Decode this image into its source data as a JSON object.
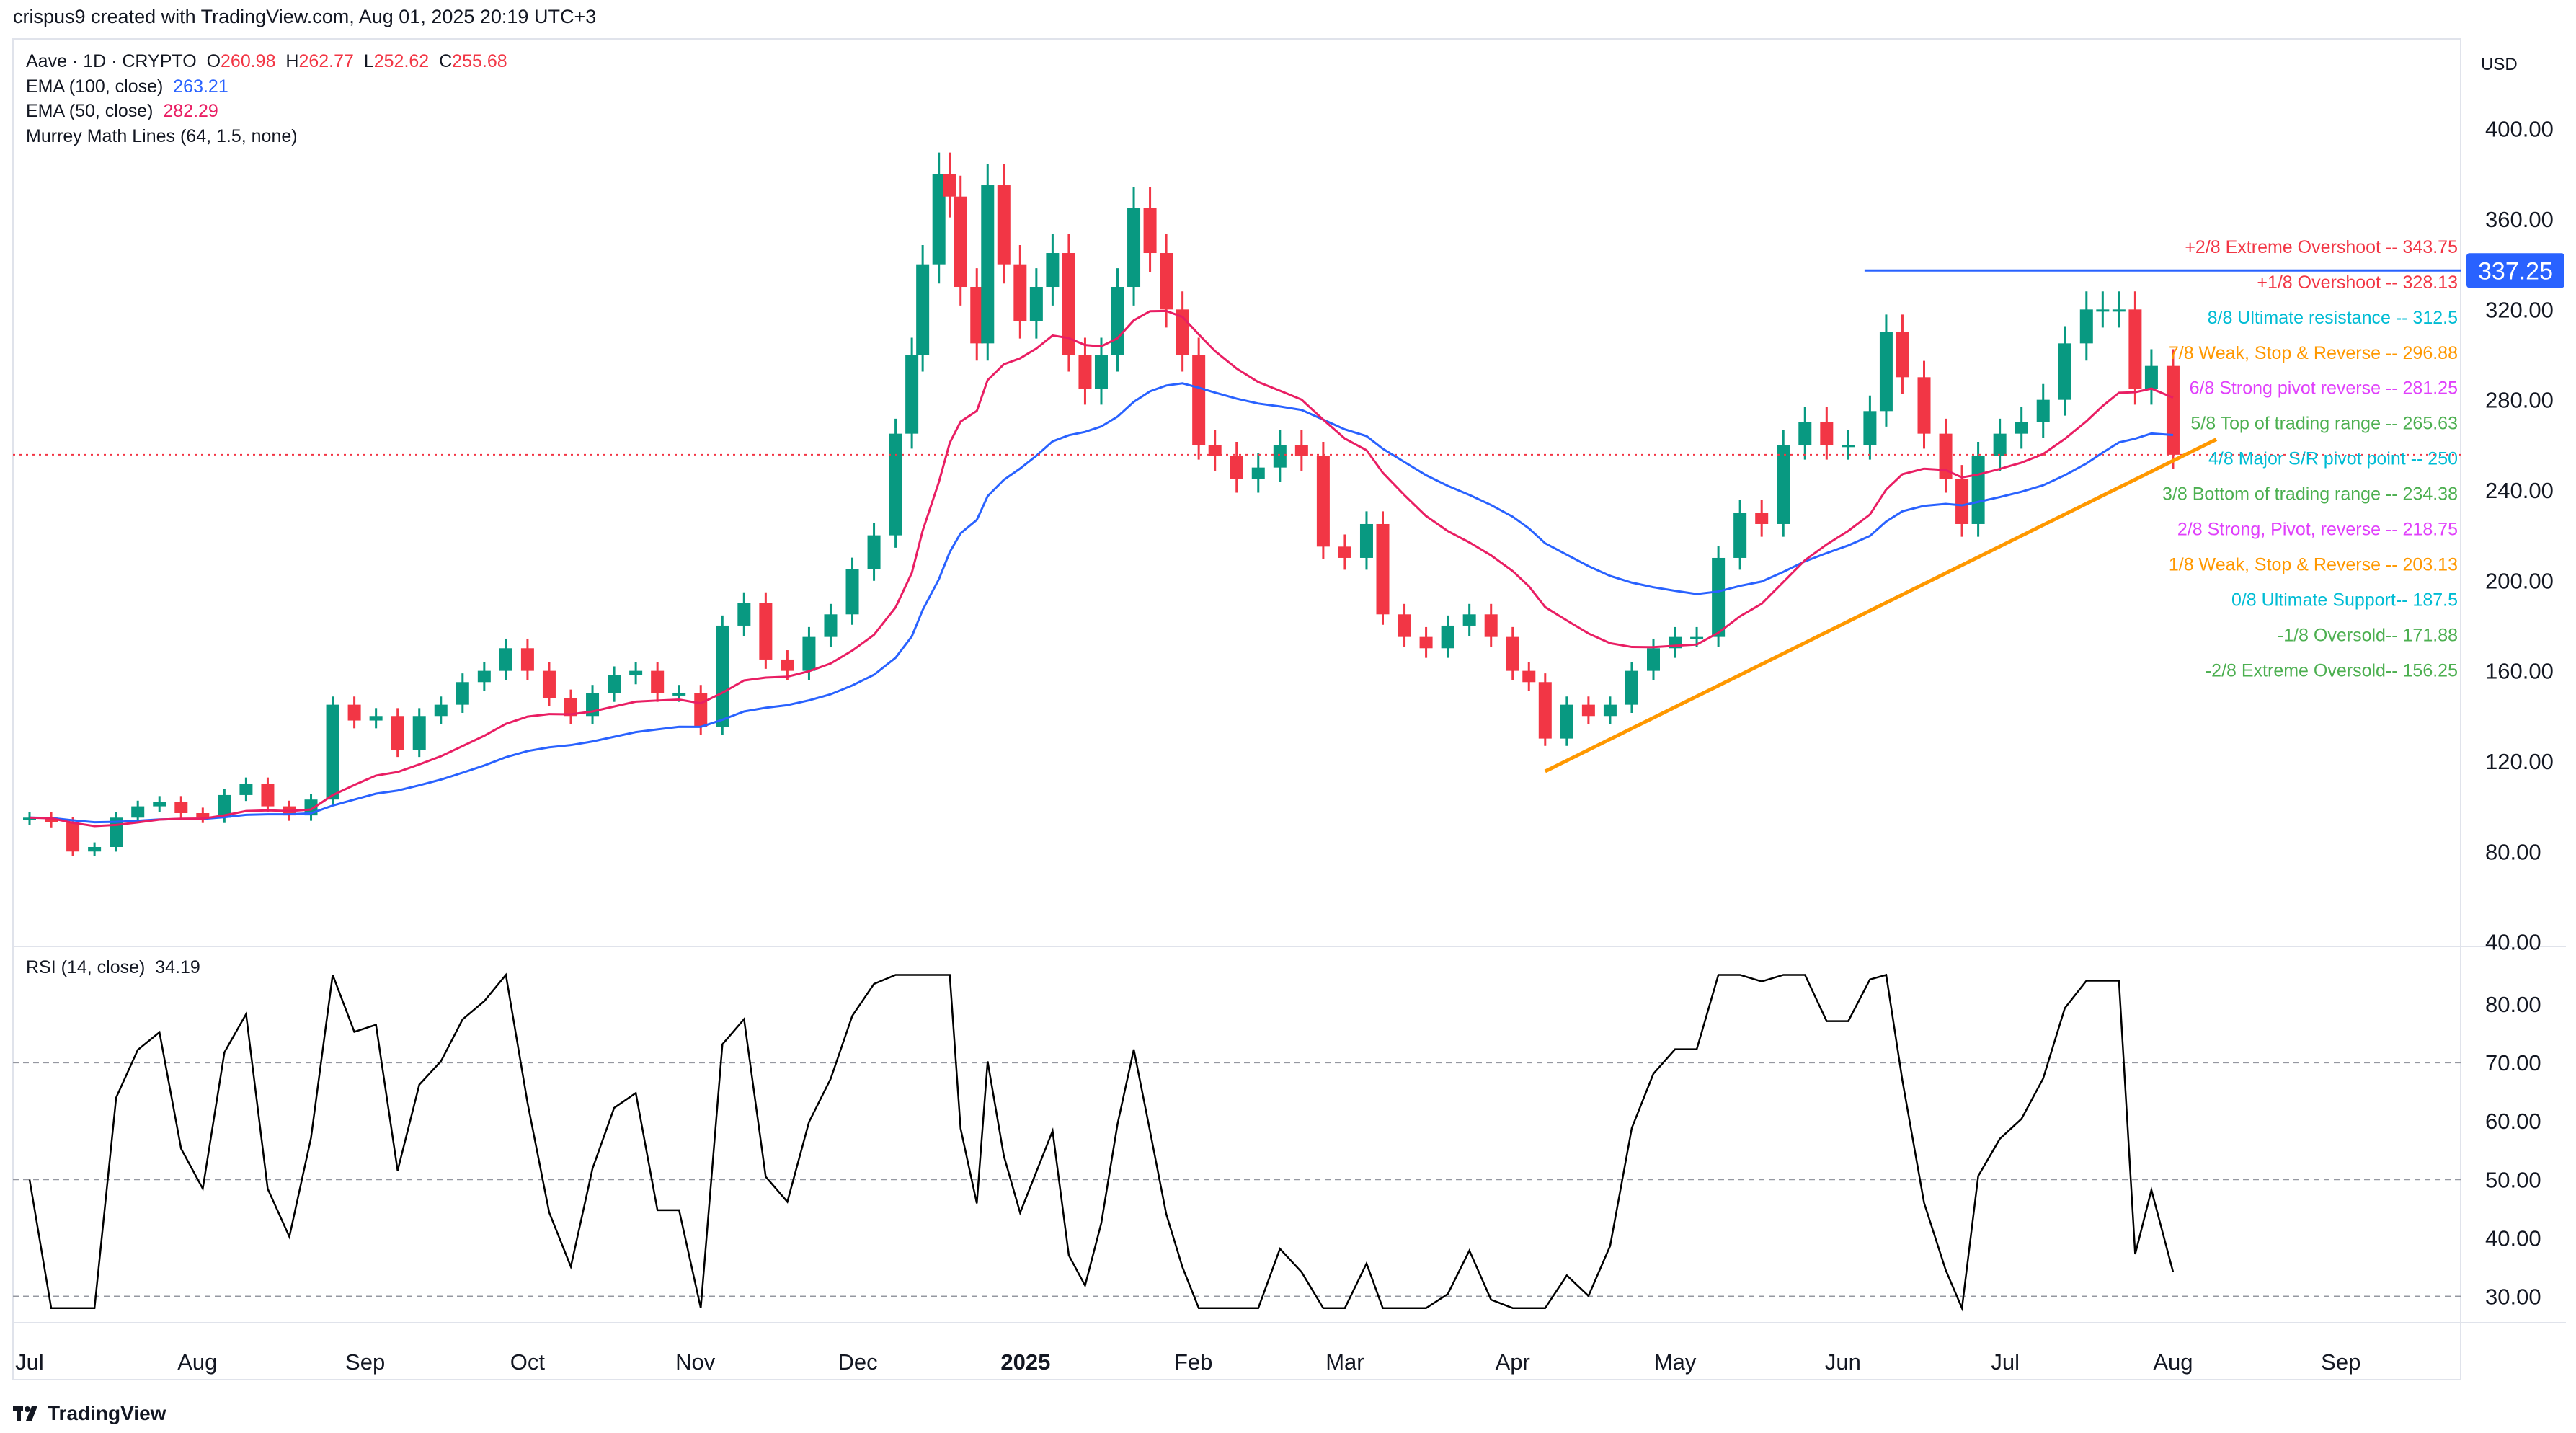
{
  "header": {
    "attribution": "crispus9 created with TradingView.com, Aug 01, 2025 20:19 UTC+3"
  },
  "legend": {
    "symbol": "Aave · 1D · CRYPTO",
    "o_label": "O",
    "o": "260.98",
    "h_label": "H",
    "h": "262.77",
    "l_label": "L",
    "l": "252.62",
    "c_label": "C",
    "c": "255.68",
    "ema100_label": "EMA (100, close)",
    "ema100": "263.21",
    "ema50_label": "EMA (50, close)",
    "ema50": "282.29",
    "murrey_label": "Murrey Math Lines (64, 1.5, none)",
    "rsi_label": "RSI (14, close)",
    "rsi": "34.19"
  },
  "currency": "USD",
  "brand": "TradingView",
  "colors": {
    "up": "#089981",
    "down": "#f23645",
    "ema100": "#2962ff",
    "ema50": "#e91e63",
    "trendline": "#ff9800",
    "rsi": "#000000"
  },
  "chart_data": {
    "type": "candlestick",
    "price_axis": {
      "ticks": [
        "400.00",
        "360.00",
        "320.00",
        "280.00",
        "240.00",
        "200.00",
        "160.00",
        "120.00",
        "80.00",
        "40.00"
      ],
      "range": [
        40,
        400
      ]
    },
    "rsi_axis": {
      "ticks": [
        "80.00",
        "70.00",
        "60.00",
        "50.00",
        "40.00",
        "30.00"
      ],
      "dashed_levels": [
        70,
        50,
        30
      ]
    },
    "time_axis": [
      "Jul",
      "Aug",
      "Sep",
      "Oct",
      "Nov",
      "Dec",
      "2025",
      "Feb",
      "Mar",
      "Apr",
      "May",
      "Jun",
      "Jul",
      "Aug",
      "Sep"
    ],
    "time_axis_dates": [
      "2024-07-01",
      "2024-08-01",
      "2024-09-01",
      "2024-10-01",
      "2024-11-01",
      "2024-12-01",
      "2025-01-01",
      "2025-02-01",
      "2025-03-01",
      "2025-04-01",
      "2025-05-01",
      "2025-06-01",
      "2025-07-01",
      "2025-08-01",
      "2025-09-01"
    ],
    "closes": [
      [
        "2024-07-01",
        95
      ],
      [
        "2024-07-05",
        93
      ],
      [
        "2024-07-09",
        80
      ],
      [
        "2024-07-13",
        82
      ],
      [
        "2024-07-17",
        95
      ],
      [
        "2024-07-21",
        100
      ],
      [
        "2024-07-25",
        102
      ],
      [
        "2024-07-29",
        97
      ],
      [
        "2024-08-02",
        95
      ],
      [
        "2024-08-06",
        105
      ],
      [
        "2024-08-10",
        110
      ],
      [
        "2024-08-14",
        100
      ],
      [
        "2024-08-18",
        96
      ],
      [
        "2024-08-22",
        103
      ],
      [
        "2024-08-26",
        145
      ],
      [
        "2024-08-30",
        138
      ],
      [
        "2024-09-03",
        140
      ],
      [
        "2024-09-07",
        125
      ],
      [
        "2024-09-11",
        140
      ],
      [
        "2024-09-15",
        145
      ],
      [
        "2024-09-19",
        155
      ],
      [
        "2024-09-23",
        160
      ],
      [
        "2024-09-27",
        170
      ],
      [
        "2024-10-01",
        160
      ],
      [
        "2024-10-05",
        148
      ],
      [
        "2024-10-09",
        140
      ],
      [
        "2024-10-13",
        150
      ],
      [
        "2024-10-17",
        158
      ],
      [
        "2024-10-21",
        160
      ],
      [
        "2024-10-25",
        150
      ],
      [
        "2024-10-29",
        150
      ],
      [
        "2024-11-02",
        135
      ],
      [
        "2024-11-06",
        180
      ],
      [
        "2024-11-10",
        190
      ],
      [
        "2024-11-14",
        165
      ],
      [
        "2024-11-18",
        160
      ],
      [
        "2024-11-22",
        175
      ],
      [
        "2024-11-26",
        185
      ],
      [
        "2024-11-30",
        205
      ],
      [
        "2024-12-04",
        220
      ],
      [
        "2024-12-08",
        265
      ],
      [
        "2024-12-11",
        300
      ],
      [
        "2024-12-13",
        340
      ],
      [
        "2024-12-16",
        380
      ],
      [
        "2024-12-18",
        370
      ],
      [
        "2024-12-20",
        330
      ],
      [
        "2024-12-23",
        305
      ],
      [
        "2024-12-25",
        375
      ],
      [
        "2024-12-28",
        340
      ],
      [
        "2024-12-31",
        315
      ],
      [
        "2025-01-03",
        330
      ],
      [
        "2025-01-06",
        345
      ],
      [
        "2025-01-09",
        300
      ],
      [
        "2025-01-12",
        285
      ],
      [
        "2025-01-15",
        300
      ],
      [
        "2025-01-18",
        330
      ],
      [
        "2025-01-21",
        365
      ],
      [
        "2025-01-24",
        345
      ],
      [
        "2025-01-27",
        320
      ],
      [
        "2025-01-30",
        300
      ],
      [
        "2025-02-02",
        260
      ],
      [
        "2025-02-05",
        255
      ],
      [
        "2025-02-09",
        245
      ],
      [
        "2025-02-13",
        250
      ],
      [
        "2025-02-17",
        260
      ],
      [
        "2025-02-21",
        255
      ],
      [
        "2025-02-25",
        215
      ],
      [
        "2025-03-01",
        210
      ],
      [
        "2025-03-05",
        225
      ],
      [
        "2025-03-08",
        185
      ],
      [
        "2025-03-12",
        175
      ],
      [
        "2025-03-16",
        170
      ],
      [
        "2025-03-20",
        180
      ],
      [
        "2025-03-24",
        185
      ],
      [
        "2025-03-28",
        175
      ],
      [
        "2025-04-01",
        160
      ],
      [
        "2025-04-04",
        155
      ],
      [
        "2025-04-07",
        130
      ],
      [
        "2025-04-11",
        145
      ],
      [
        "2025-04-15",
        140
      ],
      [
        "2025-04-19",
        145
      ],
      [
        "2025-04-23",
        160
      ],
      [
        "2025-04-27",
        170
      ],
      [
        "2025-05-01",
        175
      ],
      [
        "2025-05-05",
        175
      ],
      [
        "2025-05-09",
        210
      ],
      [
        "2025-05-13",
        230
      ],
      [
        "2025-05-17",
        225
      ],
      [
        "2025-05-21",
        260
      ],
      [
        "2025-05-25",
        270
      ],
      [
        "2025-05-29",
        260
      ],
      [
        "2025-06-02",
        260
      ],
      [
        "2025-06-06",
        275
      ],
      [
        "2025-06-09",
        310
      ],
      [
        "2025-06-12",
        290
      ],
      [
        "2025-06-16",
        265
      ],
      [
        "2025-06-20",
        245
      ],
      [
        "2025-06-23",
        225
      ],
      [
        "2025-06-26",
        255
      ],
      [
        "2025-06-30",
        265
      ],
      [
        "2025-07-04",
        270
      ],
      [
        "2025-07-08",
        280
      ],
      [
        "2025-07-12",
        305
      ],
      [
        "2025-07-16",
        320
      ],
      [
        "2025-07-19",
        320
      ],
      [
        "2025-07-22",
        320
      ],
      [
        "2025-07-25",
        285
      ],
      [
        "2025-07-28",
        295
      ],
      [
        "2025-08-01",
        255.68
      ]
    ],
    "current_price": 255.68,
    "horizontal_line": {
      "value": 337.25,
      "label": "337.25",
      "from": "2025-06-05"
    },
    "trendline": {
      "from": [
        "2025-04-07",
        115.5
      ],
      "to": [
        "2025-08-09",
        262.5
      ]
    },
    "murrey_levels": [
      {
        "label": "+2/8 Extreme Overshoot --  343.75",
        "value": 343.75,
        "color": "#f23645"
      },
      {
        "label": "+1/8 Overshoot --  328.13",
        "value": 328.13,
        "color": "#f23645"
      },
      {
        "label": "8/8 Ultimate resistance --  312.5",
        "value": 312.5,
        "color": "#00bcd4"
      },
      {
        "label": "7/8 Weak, Stop & Reverse --  296.88",
        "value": 296.88,
        "color": "#ff9800"
      },
      {
        "label": "6/8 Strong pivot reverse --  281.25",
        "value": 281.25,
        "color": "#e040fb"
      },
      {
        "label": "5/8 Top of trading range --  265.63",
        "value": 265.63,
        "color": "#4caf50"
      },
      {
        "label": "4/8 Major S/R pivot point --  250",
        "value": 250,
        "color": "#00bcd4"
      },
      {
        "label": "3/8 Bottom of trading range --  234.38",
        "value": 234.38,
        "color": "#4caf50"
      },
      {
        "label": "2/8 Strong, Pivot, reverse --  218.75",
        "value": 218.75,
        "color": "#e040fb"
      },
      {
        "label": "1/8 Weak, Stop & Reverse --  203.13",
        "value": 203.13,
        "color": "#ff9800"
      },
      {
        "label": "0/8 Ultimate Support--  187.5",
        "value": 187.5,
        "color": "#00bcd4"
      },
      {
        "label": "-1/8 Oversold--  171.88",
        "value": 171.88,
        "color": "#4caf50"
      },
      {
        "label": "-2/8 Extreme Oversold--  156.25",
        "value": 156.25,
        "color": "#4caf50"
      }
    ]
  }
}
